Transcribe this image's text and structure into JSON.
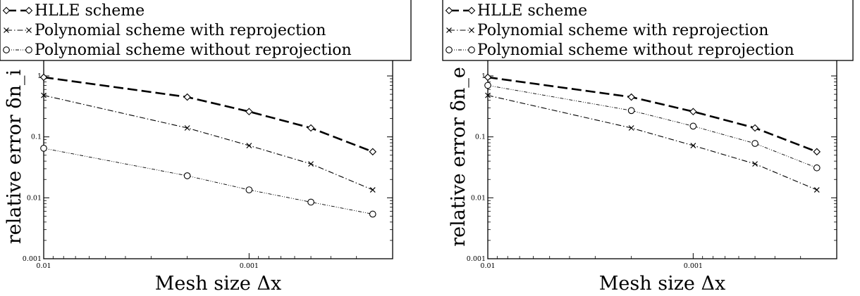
{
  "chart_data": [
    {
      "type": "line",
      "title": "",
      "xlabel": "Mesh size Δx",
      "ylabel": "relative error δn_i",
      "x_scale": "log",
      "x_reversed": true,
      "xlim": [
        0.01,
        0.0002
      ],
      "y_scale": "log",
      "ylim": [
        0.001,
        1
      ],
      "x_ticks": [
        "0.01",
        "0.001"
      ],
      "y_ticks": [
        "0.001",
        "0.01",
        "0.1",
        "1"
      ],
      "grid": false,
      "legend_position": "top-left, above plot",
      "x": [
        0.01,
        0.002,
        0.001,
        0.0005,
        0.00025
      ],
      "series": [
        {
          "name": "HLLE scheme",
          "marker": "diamond",
          "line": "long-dash",
          "values": [
            0.95,
            0.45,
            0.26,
            0.14,
            0.057
          ]
        },
        {
          "name": "Polynomial scheme with reprojection",
          "marker": "cross",
          "line": "dash-dot",
          "values": [
            0.48,
            0.14,
            0.072,
            0.036,
            0.0135
          ]
        },
        {
          "name": "Polynomial scheme without reprojection",
          "marker": "circle",
          "line": "dot-dot-dash",
          "values": [
            0.065,
            0.023,
            0.0135,
            0.0085,
            0.0054
          ]
        }
      ]
    },
    {
      "type": "line",
      "title": "",
      "xlabel": "Mesh size Δx",
      "ylabel": "relative error δn_e",
      "x_scale": "log",
      "x_reversed": true,
      "xlim": [
        0.01,
        0.0002
      ],
      "y_scale": "log",
      "ylim": [
        0.001,
        1
      ],
      "x_ticks": [
        "0.01",
        "0.001"
      ],
      "y_ticks": [
        "0.001",
        "0.01",
        "0.1",
        "1"
      ],
      "grid": false,
      "legend_position": "top-left, above plot",
      "x": [
        0.01,
        0.002,
        0.001,
        0.0005,
        0.00025
      ],
      "series": [
        {
          "name": "HLLE scheme",
          "marker": "diamond",
          "line": "long-dash",
          "values": [
            0.95,
            0.45,
            0.26,
            0.14,
            0.057
          ]
        },
        {
          "name": "Polynomial scheme with reprojection",
          "marker": "cross",
          "line": "dash-dot",
          "values": [
            0.48,
            0.14,
            0.072,
            0.036,
            0.0135
          ]
        },
        {
          "name": "Polynomial scheme without reprojection",
          "marker": "circle",
          "line": "dot-dot-dash",
          "values": [
            0.7,
            0.27,
            0.15,
            0.078,
            0.031
          ]
        }
      ]
    }
  ]
}
